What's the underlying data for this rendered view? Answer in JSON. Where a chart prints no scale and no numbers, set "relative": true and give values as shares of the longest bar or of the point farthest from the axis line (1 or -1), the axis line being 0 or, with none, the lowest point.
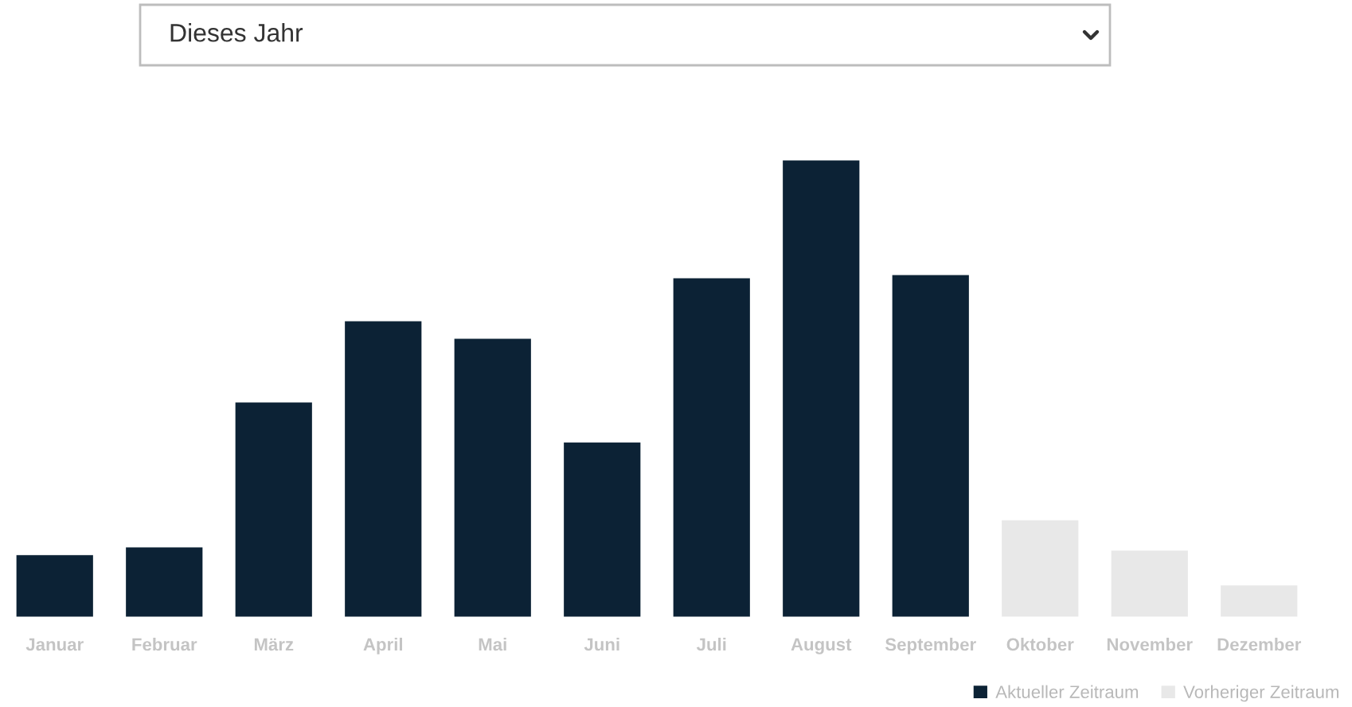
{
  "chart_data": {
    "type": "bar",
    "relative": true,
    "categories": [
      "Januar",
      "Februar",
      "März",
      "April",
      "Mai",
      "Juni",
      "Juli",
      "August",
      "September",
      "Oktober",
      "November",
      "Dezember"
    ],
    "series": [
      {
        "name": "Aktueller Zeitraum",
        "color": "#0c2235",
        "values": [
          0.139,
          0.156,
          0.472,
          0.649,
          0.611,
          0.385,
          0.743,
          1,
          0.75,
          null,
          null,
          null
        ]
      },
      {
        "name": "Vorheriger Zeitraum",
        "color": "#e8e8e8",
        "values": [
          null,
          null,
          null,
          null,
          null,
          null,
          null,
          null,
          null,
          0.215,
          0.149,
          0.073
        ]
      }
    ],
    "annotations": [
      "Dieses Jahr"
    ],
    "legend": "bottom right",
    "grid": false
  }
}
